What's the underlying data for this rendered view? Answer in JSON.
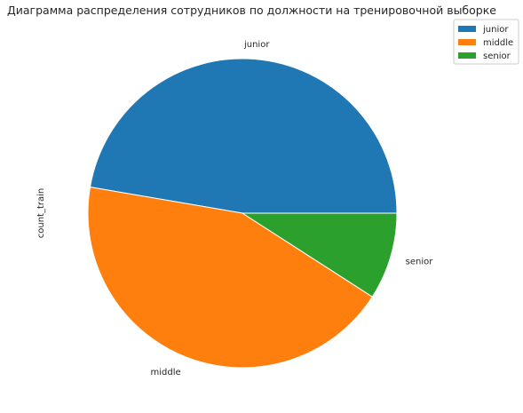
{
  "chart_data": {
    "type": "pie",
    "title": "Диаграмма распределения сотрудников по должности на тренировочной выборке",
    "ylabel": "count_train",
    "categories": [
      "junior",
      "middle",
      "senior"
    ],
    "values": [
      47.3,
      43.6,
      9.1
    ],
    "colors": [
      "#1f77b4",
      "#ff7f0e",
      "#2ca02c"
    ],
    "start_angle_deg": 0,
    "direction": "counterclockwise",
    "legend": {
      "placement": "top-right",
      "entries": [
        "junior",
        "middle",
        "senior"
      ]
    }
  }
}
